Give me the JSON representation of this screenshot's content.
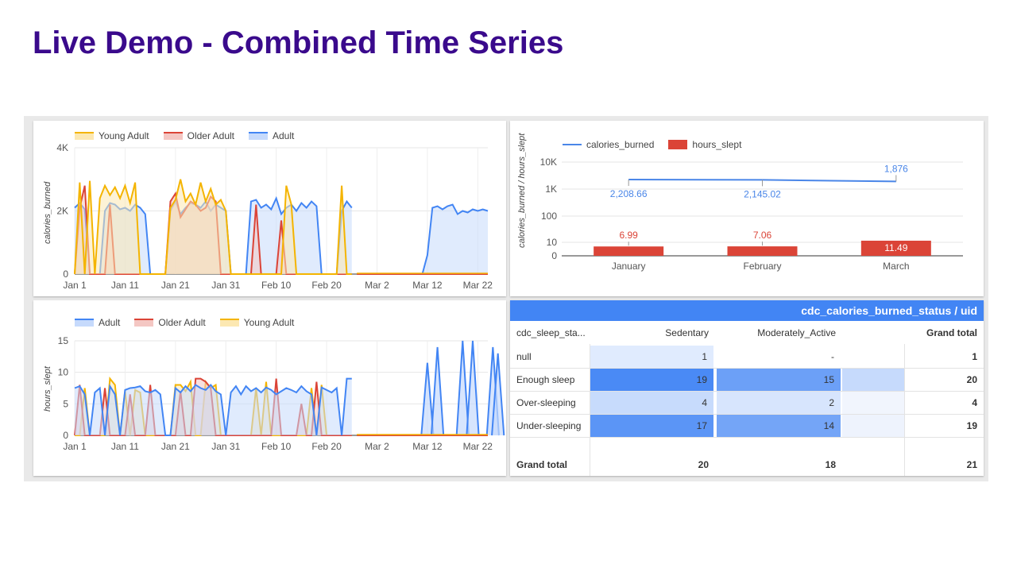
{
  "title": "Live Demo - Combined Time Series",
  "colors": {
    "title": "#3a0a8c",
    "young_adult": "#f4b400",
    "older_adult": "#db4437",
    "adult": "#4285f4",
    "calories_line": "#4a86e8",
    "hours_bar": "#db4437",
    "pivot_header": "#4285f4"
  },
  "chart_data": [
    {
      "type": "area",
      "ylabel": "calories_burned",
      "yticks": [
        "0",
        "2K",
        "4K"
      ],
      "ylim": [
        0,
        4000
      ],
      "xticks": [
        "Jan 1",
        "Jan 11",
        "Jan 21",
        "Jan 31",
        "Feb 10",
        "Feb 20",
        "Mar 2",
        "Mar 12",
        "Mar 22"
      ],
      "x_start": "Jan 1",
      "series": [
        {
          "name": "Young Adult",
          "values": [
            0,
            2900,
            0,
            2950,
            0,
            2400,
            2800,
            2500,
            2750,
            2400,
            2800,
            2250,
            2900,
            0,
            0,
            0,
            0,
            0,
            0,
            2100,
            2350,
            3000,
            2300,
            2550,
            2200,
            2900,
            2300,
            2700,
            2200,
            2350,
            2000,
            0,
            0,
            0,
            0,
            0,
            0,
            0,
            0,
            0,
            0,
            0,
            2800,
            2200,
            0,
            0,
            0,
            0,
            0,
            0,
            0,
            0,
            0,
            2800,
            0,
            0,
            0,
            0,
            0,
            0,
            0,
            0,
            0,
            0,
            2000,
            2800,
            0,
            0,
            0,
            0,
            2900,
            2300,
            3000,
            0,
            0,
            0,
            0,
            0,
            0,
            0,
            0,
            0,
            0,
            0,
            0,
            0,
            0,
            0,
            0,
            0,
            0,
            0,
            0,
            0,
            0,
            0,
            0,
            0,
            0,
            0,
            0,
            0,
            0,
            0,
            0,
            0,
            0,
            0,
            0,
            0,
            0,
            0,
            0,
            0,
            0,
            0,
            0,
            0,
            0,
            0,
            0,
            0,
            0,
            0,
            0,
            0,
            0,
            0,
            0,
            0,
            0,
            0,
            0,
            0,
            0,
            0,
            0,
            0,
            0,
            0,
            0,
            0,
            0
          ]
        },
        {
          "name": "Older Adult",
          "values": [
            0,
            2100,
            2800,
            0,
            0,
            0,
            0,
            2200,
            0,
            0,
            0,
            0,
            0,
            0,
            0,
            0,
            0,
            0,
            0,
            2300,
            2550,
            1800,
            2050,
            2300,
            2200,
            2000,
            2100,
            2450,
            2300,
            0,
            0,
            0,
            0,
            0,
            0,
            0,
            2200,
            0,
            0,
            0,
            0,
            1700,
            0,
            0,
            0,
            0,
            0,
            0,
            0,
            0,
            0,
            0,
            0,
            0,
            0,
            0,
            0,
            0,
            0,
            0,
            0,
            0,
            0,
            0,
            2400,
            0,
            0,
            0,
            0,
            0,
            0,
            0,
            2200,
            0,
            0,
            0,
            0,
            0,
            0,
            0,
            0,
            0,
            0,
            0,
            0,
            0,
            0,
            0,
            0,
            0,
            0,
            0,
            0,
            0,
            0,
            0,
            0,
            0,
            0,
            0,
            0,
            0,
            0,
            0,
            0,
            0,
            0,
            0,
            0,
            0,
            0,
            0,
            0,
            0,
            0,
            0,
            0,
            0,
            0,
            0,
            0,
            0,
            0,
            0,
            0,
            0,
            0,
            0,
            0,
            0,
            0,
            0,
            0,
            0,
            0,
            0,
            0,
            0,
            0,
            0,
            0,
            0,
            0
          ]
        },
        {
          "name": "Adult",
          "values": [
            2100,
            2250,
            2050,
            0,
            0,
            0,
            2000,
            2250,
            2200,
            2050,
            2100,
            2000,
            2200,
            2100,
            1900,
            0,
            0,
            0,
            0,
            2000,
            2300,
            1900,
            2100,
            2250,
            2200,
            2100,
            2300,
            2000,
            2200,
            2100,
            2000,
            0,
            0,
            0,
            0,
            2300,
            2350,
            2100,
            2200,
            2050,
            2400,
            1900,
            2100,
            2200,
            2000,
            2250,
            2100,
            2300,
            2150,
            0,
            0,
            0,
            0,
            2000,
            2300,
            2100,
            2350,
            2000,
            2200,
            2100,
            2300,
            1900,
            0,
            0,
            2200,
            2350,
            2250,
            2100,
            0,
            0,
            0,
            0,
            0,
            0,
            0,
            0,
            0,
            0,
            0,
            0,
            0,
            0,
            0,
            0,
            0,
            0,
            0,
            0,
            0,
            0,
            0,
            0,
            0,
            0,
            0,
            0,
            0,
            0,
            0,
            0,
            0,
            0,
            0,
            0,
            0,
            0,
            0,
            0,
            0,
            0,
            0,
            0,
            0,
            0,
            0,
            0,
            0,
            0,
            0,
            0,
            0,
            0,
            0,
            0,
            0,
            0,
            0,
            0,
            0,
            0,
            0,
            0,
            0,
            0,
            0,
            0,
            0,
            0,
            0,
            0,
            0,
            0,
            0
          ]
        }
      ],
      "adult_late": {
        "start_day": 69,
        "values": [
          0,
          600,
          2100,
          2150,
          2050,
          2150,
          2200,
          1900,
          2000,
          1950,
          2050,
          2000,
          2050,
          2000,
          2050,
          1800,
          1800,
          1600,
          0
        ]
      }
    },
    {
      "type": "combo",
      "categories": [
        "January",
        "February",
        "March"
      ],
      "series": [
        {
          "name": "calories_burned",
          "type": "line",
          "values": [
            2208.66,
            2145.02,
            1876
          ],
          "labels": [
            "2,208.66",
            "2,145.02",
            "1,876"
          ]
        },
        {
          "name": "hours_slept",
          "type": "bar",
          "values": [
            6.99,
            7.06,
            11.49
          ],
          "labels": [
            "6.99",
            "7.06",
            "11.49"
          ]
        }
      ],
      "ylabel": "calories_burned / hours_slept",
      "yticks": [
        "0",
        "10",
        "100",
        "1K",
        "10K"
      ],
      "scale": "log"
    },
    {
      "type": "area",
      "ylabel": "hours_slept",
      "yticks": [
        "0",
        "5",
        "10",
        "15"
      ],
      "ylim": [
        0,
        15
      ],
      "xticks": [
        "Jan 1",
        "Jan 11",
        "Jan 21",
        "Jan 31",
        "Feb 10",
        "Feb 20",
        "Mar 2",
        "Mar 12",
        "Mar 22"
      ],
      "series": [
        {
          "name": "Adult",
          "values": [
            7.5,
            7.8,
            6.5,
            0,
            6.8,
            7.5,
            0,
            7.8,
            6.5,
            0,
            7.2,
            7.5,
            7.6,
            7.8,
            7.0,
            6.8,
            7.2,
            6.5,
            0,
            0,
            7.5,
            6.8,
            7.8,
            7.0,
            8.0,
            7.5,
            7.2,
            8.0,
            7.0,
            6.5,
            0,
            6.8,
            7.8,
            6.5,
            7.8,
            7.0,
            7.5,
            6.8,
            7.6,
            7.2,
            6.5,
            7.0,
            7.5,
            7.2,
            6.8,
            7.8,
            7.0,
            6.5,
            0,
            7.6,
            7.2,
            6.8,
            7.5,
            0,
            9.0,
            9.0,
            9.0,
            9.0,
            0,
            0,
            0,
            0,
            0,
            0,
            0,
            0,
            0,
            0,
            0,
            0,
            0,
            0,
            0,
            0,
            0,
            0,
            0,
            0,
            0,
            0,
            0,
            0,
            0,
            0,
            0,
            0,
            0,
            0,
            0,
            0,
            0,
            0,
            0,
            0,
            0,
            0,
            0,
            0,
            0,
            0,
            0,
            0,
            0,
            0,
            0,
            0,
            0,
            0,
            0,
            0,
            0,
            0,
            0,
            0,
            0,
            0,
            0,
            0,
            0,
            0,
            0,
            0,
            0,
            0,
            0,
            0,
            0,
            0,
            0,
            0,
            0,
            0,
            0,
            0,
            0,
            0,
            0,
            0,
            0,
            0,
            0,
            0,
            0,
            0
          ]
        },
        {
          "name": "Older Adult",
          "values": [
            0,
            8.0,
            0,
            0,
            0,
            0,
            7.5,
            0,
            0,
            0,
            0,
            6.5,
            0,
            0,
            0,
            8.0,
            0,
            0,
            0,
            0,
            0,
            7.0,
            0,
            0,
            9.0,
            9.0,
            8.5,
            7.5,
            0,
            0,
            0,
            0,
            0,
            0,
            0,
            0,
            0,
            0,
            0,
            0,
            9.0,
            0,
            0,
            0,
            0,
            5.0,
            0,
            0,
            8.5,
            0,
            0,
            0,
            0,
            0,
            0,
            0,
            0,
            0,
            0,
            0,
            0,
            0,
            0,
            0,
            0,
            0,
            0,
            0,
            0,
            0,
            0,
            0,
            0,
            0,
            0,
            0,
            0,
            0,
            0,
            0,
            0,
            0,
            0,
            0,
            0,
            0,
            0,
            0,
            0,
            0,
            0,
            0,
            0,
            0,
            0,
            0,
            0,
            0,
            0,
            0,
            0,
            0,
            0,
            0,
            0,
            0,
            0,
            0,
            0,
            0,
            0,
            0,
            0,
            0,
            0,
            0,
            0,
            0,
            0,
            0,
            0,
            0,
            0,
            0,
            0,
            0,
            0,
            0,
            0,
            0,
            0,
            0,
            0,
            0,
            0,
            0,
            0,
            0,
            0,
            0
          ]
        },
        {
          "name": "Young Adult",
          "values": [
            0,
            0,
            7.5,
            0,
            0,
            0,
            0,
            9.0,
            8.0,
            0,
            7.0,
            0,
            7.2,
            6.8,
            0,
            0,
            0,
            0,
            0,
            0,
            8.0,
            8.0,
            7.0,
            8.5,
            0,
            0,
            8.5,
            7.5,
            8.0,
            0,
            0,
            0,
            0,
            0,
            0,
            0,
            7.5,
            0,
            8.5,
            0,
            0,
            0,
            0,
            0,
            0,
            0,
            0,
            7.5,
            0,
            8.0,
            0,
            0,
            0,
            0,
            0,
            0,
            0,
            0,
            0,
            0,
            0,
            0,
            0,
            0,
            0,
            0,
            0,
            0,
            0,
            0,
            0,
            0,
            0,
            0,
            0,
            0,
            0,
            0,
            0,
            0,
            0,
            0,
            0,
            0,
            0,
            0,
            0,
            0,
            0,
            0,
            0,
            0,
            0,
            0,
            0,
            0,
            0,
            0,
            0,
            0,
            0,
            0,
            0,
            0,
            0,
            0,
            0,
            0,
            0,
            0,
            0,
            0,
            0,
            0,
            0,
            0,
            0,
            0,
            0,
            0,
            0,
            0,
            0,
            0,
            0,
            0,
            0,
            0,
            0,
            0,
            0,
            0,
            0,
            0,
            0,
            0,
            0,
            0,
            0,
            0
          ]
        }
      ],
      "adult_late": {
        "start_day": 70,
        "values": [
          0,
          0,
          0,
          0,
          0,
          0,
          0,
          0,
          0,
          0,
          0,
          0,
          0,
          0,
          0,
          0,
          0,
          0,
          0,
          0,
          0,
          0,
          0,
          0,
          0,
          0,
          0,
          0,
          0,
          0,
          0,
          0,
          0,
          0,
          0,
          0,
          0,
          0,
          0,
          0,
          0,
          0,
          0,
          0,
          0,
          0,
          0,
          0,
          0,
          0,
          0,
          0,
          0,
          0,
          0,
          0,
          0,
          0,
          0,
          0,
          0,
          0,
          0,
          0,
          0,
          0,
          0,
          0,
          0,
          0,
          0,
          0,
          0,
          0,
          0,
          0,
          0,
          0,
          0,
          0,
          0,
          0,
          0,
          0,
          0,
          0,
          0,
          0,
          0,
          0,
          0,
          0,
          0,
          0,
          0,
          0,
          0,
          0,
          0,
          0,
          0,
          0,
          0,
          0,
          0,
          0,
          0,
          0,
          0,
          0,
          0,
          0,
          0,
          0,
          0,
          0,
          0,
          0,
          0,
          0,
          0,
          0,
          0,
          0,
          0,
          0,
          0,
          0,
          0,
          0,
          0,
          0,
          0,
          0,
          0,
          0,
          0,
          0,
          0,
          0,
          0,
          0,
          0,
          0,
          0
        ]
      },
      "adult_peaks": [
        {
          "day": 70,
          "value": 11.5
        },
        {
          "day": 72,
          "value": 14.0
        },
        {
          "day": 77,
          "value": 15.0
        },
        {
          "day": 79,
          "value": 15.0
        },
        {
          "day": 83,
          "value": 14.0
        },
        {
          "day": 84,
          "value": 13.0
        }
      ]
    },
    {
      "type": "table",
      "header": "cdc_calories_burned_status / uid",
      "row_dimension": "cdc_sleep_sta...",
      "columns": [
        "Sedentary",
        "Moderately_Active",
        "",
        "Grand total"
      ],
      "rows": [
        {
          "label": "null",
          "values": [
            "1",
            "-",
            "",
            "1"
          ]
        },
        {
          "label": "Enough sleep",
          "values": [
            "19",
            "15",
            "",
            "20"
          ]
        },
        {
          "label": "Over-sleeping",
          "values": [
            "4",
            "2",
            "",
            "4"
          ]
        },
        {
          "label": "Under-sleeping",
          "values": [
            "17",
            "14",
            "",
            "19"
          ]
        }
      ],
      "totals": {
        "label": "Grand total",
        "values": [
          "20",
          "18",
          "",
          "21"
        ]
      }
    }
  ],
  "legend_top": [
    "Young Adult",
    "Older Adult",
    "Adult"
  ],
  "legend_bottom": [
    "Adult",
    "Older Adult",
    "Young Adult"
  ],
  "legend_combo": [
    "calories_burned",
    "hours_slept"
  ]
}
